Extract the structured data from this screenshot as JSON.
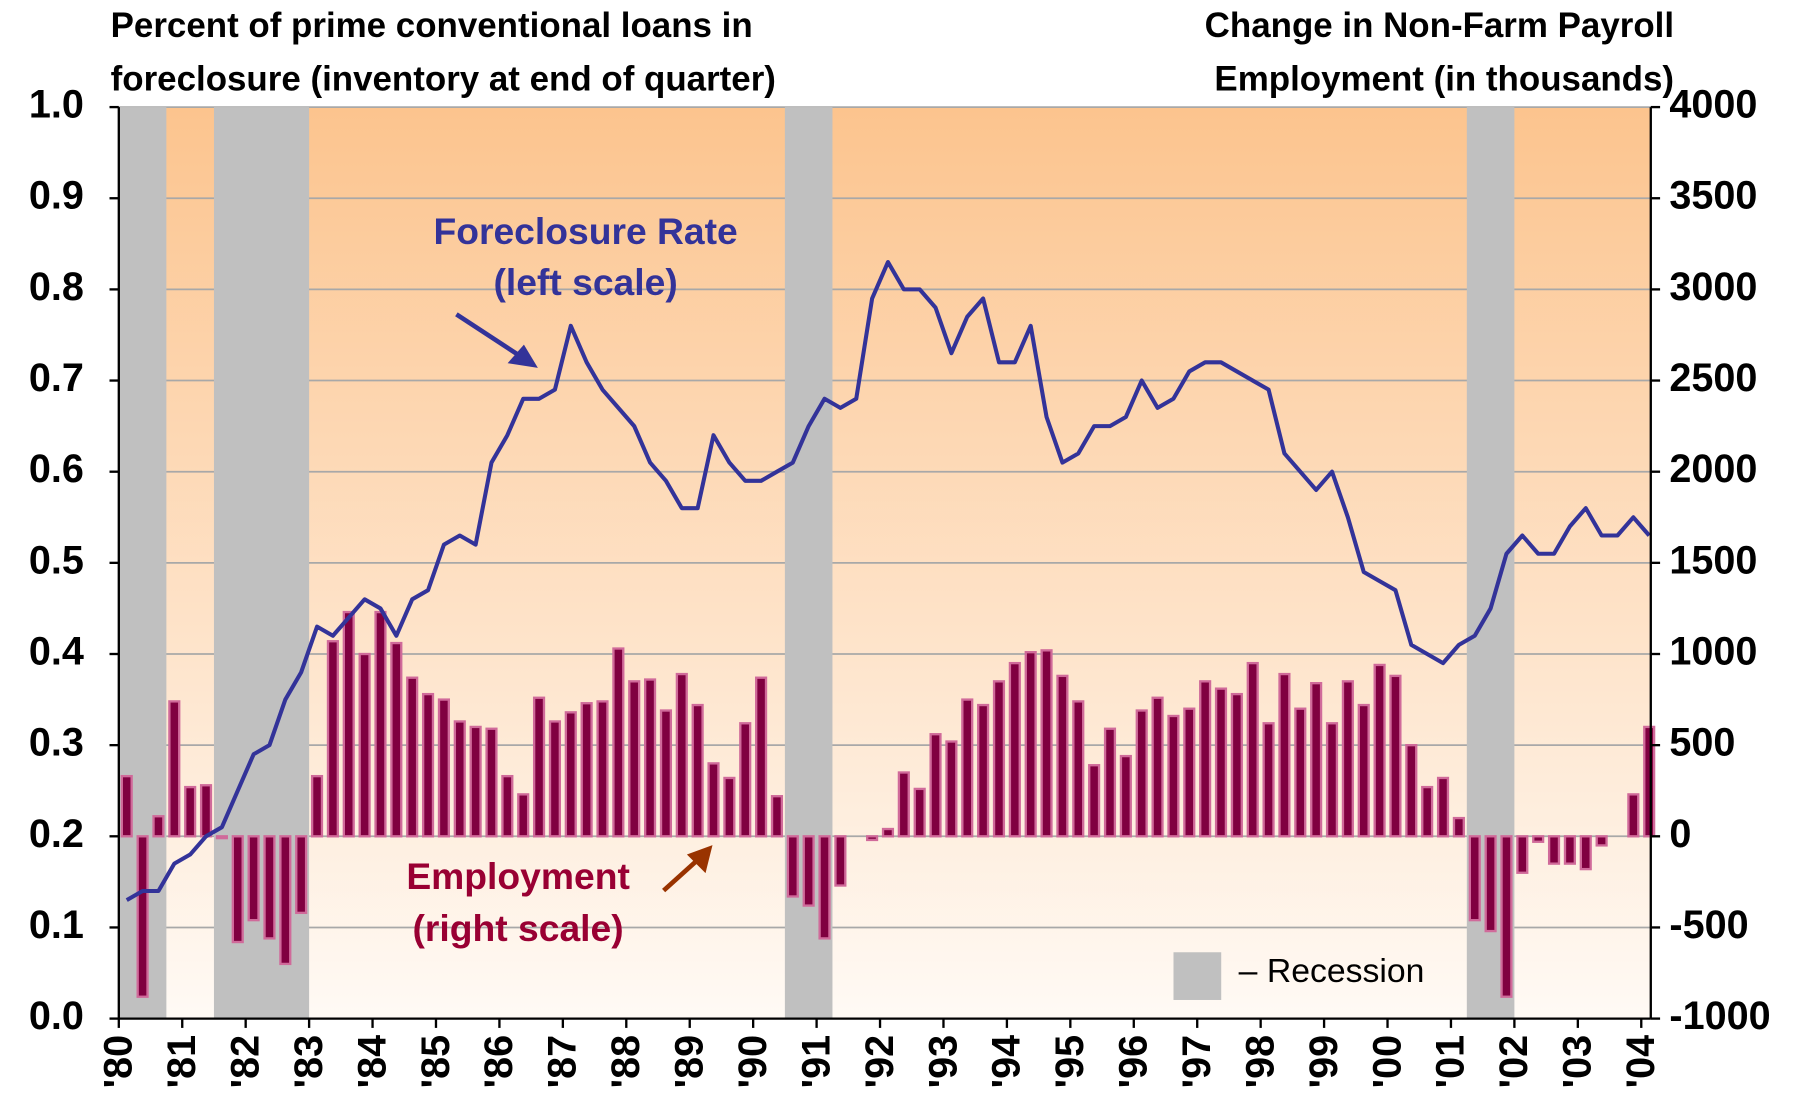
{
  "chart_data": {
    "type": "combo",
    "title_left": [
      "Percent of prime conventional loans in",
      "foreclosure (inventory at end of quarter)"
    ],
    "title_right": [
      "Change in Non-Farm Payroll",
      "Employment (in thousands)"
    ],
    "annotations": [
      {
        "lines": [
          "Foreclosure Rate",
          "(left scale)"
        ],
        "color": "#333399"
      },
      {
        "lines": [
          "Employment",
          "(right scale)"
        ],
        "color": "#990033"
      }
    ],
    "legend": {
      "label": "– Recession",
      "color": "#c0c0c0",
      "loc": "lower right"
    },
    "recessions": [
      [
        1980,
        1980.75
      ],
      [
        1981.5,
        1983
      ],
      [
        1990.5,
        1991.25
      ],
      [
        2001.25,
        2002
      ]
    ],
    "x": [
      1980.125,
      1980.375,
      1980.625,
      1980.875,
      1981.125,
      1981.375,
      1981.625,
      1981.875,
      1982.125,
      1982.375,
      1982.625,
      1982.875,
      1983.125,
      1983.375,
      1983.625,
      1983.875,
      1984.125,
      1984.375,
      1984.625,
      1984.875,
      1985.125,
      1985.375,
      1985.625,
      1985.875,
      1986.125,
      1986.375,
      1986.625,
      1986.875,
      1987.125,
      1987.375,
      1987.625,
      1987.875,
      1988.125,
      1988.375,
      1988.625,
      1988.875,
      1989.125,
      1989.375,
      1989.625,
      1989.875,
      1990.125,
      1990.375,
      1990.625,
      1990.875,
      1991.125,
      1991.375,
      1991.625,
      1991.875,
      1992.125,
      1992.375,
      1992.625,
      1992.875,
      1993.125,
      1993.375,
      1993.625,
      1993.875,
      1994.125,
      1994.375,
      1994.625,
      1994.875,
      1995.125,
      1995.375,
      1995.625,
      1995.875,
      1996.125,
      1996.375,
      1996.625,
      1996.875,
      1997.125,
      1997.375,
      1997.625,
      1997.875,
      1998.125,
      1998.375,
      1998.625,
      1998.875,
      1999.125,
      1999.375,
      1999.625,
      1999.875,
      2000.125,
      2000.375,
      2000.625,
      2000.875,
      2001.125,
      2001.375,
      2001.625,
      2001.875,
      2002.125,
      2002.375,
      2002.625,
      2002.875,
      2003.125,
      2003.375,
      2003.625,
      2003.875,
      2004.125
    ],
    "series": [
      {
        "type": "line",
        "axis": "y",
        "color": "#333399",
        "values": [
          0.13,
          0.14,
          0.14,
          0.17,
          0.18,
          0.2,
          0.21,
          0.25,
          0.29,
          0.3,
          0.35,
          0.38,
          0.43,
          0.42,
          0.44,
          0.46,
          0.45,
          0.42,
          0.46,
          0.47,
          0.52,
          0.53,
          0.52,
          0.61,
          0.64,
          0.68,
          0.68,
          0.69,
          0.76,
          0.72,
          0.69,
          0.67,
          0.65,
          0.61,
          0.59,
          0.56,
          0.56,
          0.64,
          0.61,
          0.59,
          0.59,
          0.6,
          0.61,
          0.65,
          0.68,
          0.67,
          0.68,
          0.79,
          0.83,
          0.8,
          0.8,
          0.78,
          0.73,
          0.77,
          0.79,
          0.72,
          0.72,
          0.76,
          0.66,
          0.61,
          0.62,
          0.65,
          0.65,
          0.66,
          0.7,
          0.67,
          0.68,
          0.71,
          0.72,
          0.72,
          0.71,
          0.7,
          0.69,
          0.62,
          0.6,
          0.58,
          0.6,
          0.55,
          0.49,
          0.48,
          0.47,
          0.41,
          0.4,
          0.39,
          0.41,
          0.42,
          0.45,
          0.51,
          0.53,
          0.51,
          0.51,
          0.54,
          0.56,
          0.53,
          0.53,
          0.55,
          0.53
        ]
      },
      {
        "type": "bar",
        "axis": "y2",
        "color": "#800040",
        "edgecolor": "#d06a9a",
        "values": [
          330,
          -880,
          110,
          740,
          270,
          280,
          -10,
          -580,
          -460,
          -560,
          -700,
          -420,
          330,
          1070,
          1230,
          1000,
          1230,
          1060,
          870,
          780,
          750,
          630,
          600,
          590,
          330,
          230,
          760,
          630,
          680,
          730,
          740,
          1030,
          850,
          860,
          690,
          890,
          720,
          400,
          320,
          620,
          870,
          220,
          -330,
          -380,
          -560,
          -270,
          0,
          -20,
          40,
          350,
          260,
          560,
          520,
          750,
          720,
          850,
          950,
          1010,
          1020,
          880,
          740,
          390,
          590,
          440,
          690,
          760,
          660,
          700,
          850,
          810,
          780,
          950,
          620,
          890,
          700,
          840,
          620,
          850,
          720,
          940,
          880,
          500,
          270,
          320,
          100,
          -460,
          -520,
          -880,
          -200,
          -30,
          -150,
          -150,
          -180,
          -50,
          0,
          230,
          600
        ]
      }
    ],
    "xlim": [
      1980,
      2004.15
    ],
    "xticks": [
      {
        "value": 1980,
        "label": "'80"
      },
      {
        "value": 1981,
        "label": "'81"
      },
      {
        "value": 1982,
        "label": "'82"
      },
      {
        "value": 1983,
        "label": "'83"
      },
      {
        "value": 1984,
        "label": "'84"
      },
      {
        "value": 1985,
        "label": "'85"
      },
      {
        "value": 1986,
        "label": "'86"
      },
      {
        "value": 1987,
        "label": "'87"
      },
      {
        "value": 1988,
        "label": "'88"
      },
      {
        "value": 1989,
        "label": "'89"
      },
      {
        "value": 1990,
        "label": "'90"
      },
      {
        "value": 1991,
        "label": "'91"
      },
      {
        "value": 1992,
        "label": "'92"
      },
      {
        "value": 1993,
        "label": "'93"
      },
      {
        "value": 1994,
        "label": "'94"
      },
      {
        "value": 1995,
        "label": "'95"
      },
      {
        "value": 1996,
        "label": "'96"
      },
      {
        "value": 1997,
        "label": "'97"
      },
      {
        "value": 1998,
        "label": "'98"
      },
      {
        "value": 1999,
        "label": "'99"
      },
      {
        "value": 2000,
        "label": "'00"
      },
      {
        "value": 2001,
        "label": "'01"
      },
      {
        "value": 2002,
        "label": "'02"
      },
      {
        "value": 2003,
        "label": "'03"
      },
      {
        "value": 2004,
        "label": "'04"
      }
    ],
    "ylim": [
      0,
      1
    ],
    "yticks": [
      {
        "value": 0,
        "label": "0.0"
      },
      0.1,
      0.2,
      0.3,
      0.4,
      0.5,
      0.6,
      0.7,
      0.8,
      0.9,
      {
        "value": 1,
        "label": "1.0"
      }
    ],
    "y2lim": [
      -1000,
      4000
    ],
    "y2ticks": [
      -1000,
      -500,
      0,
      500,
      1000,
      1500,
      2000,
      2500,
      3000,
      3500,
      4000
    ],
    "grid": true
  }
}
